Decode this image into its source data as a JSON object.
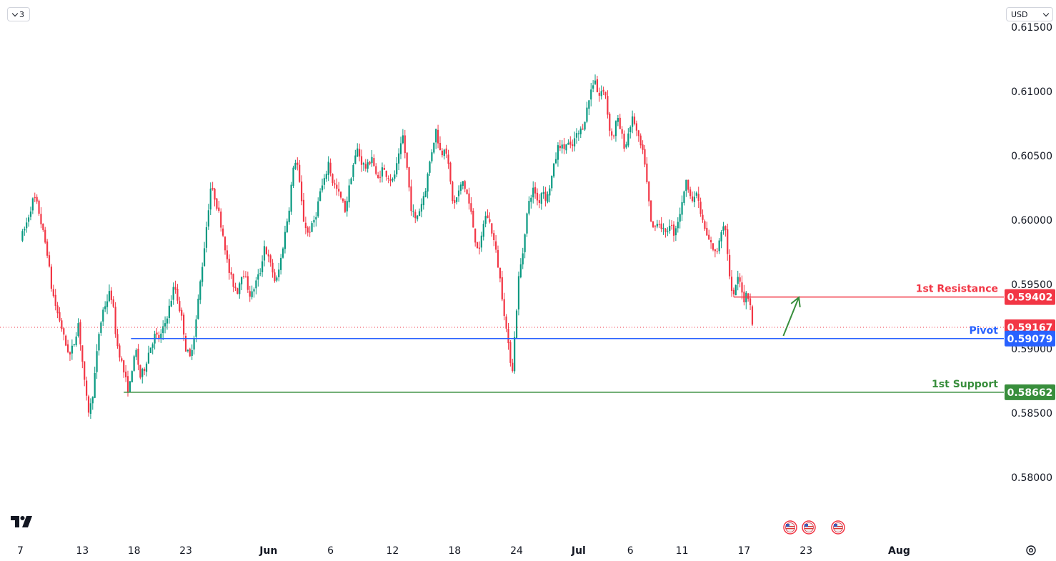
{
  "toolbar": {
    "interval_label": "3",
    "currency_label": "USD"
  },
  "colors": {
    "up": "#089981",
    "down": "#f23645",
    "resistance": "#f23645",
    "pivot": "#2962ff",
    "support": "#388e3c",
    "arrow": "#388e3c"
  },
  "chart_data": {
    "type": "candlestick",
    "title": "",
    "ylim": [
      0.5765,
      0.6155
    ],
    "y_ticks": [
      "0.58000",
      "0.58500",
      "0.59000",
      "0.59500",
      "0.60000",
      "0.60500",
      "0.61000",
      "0.61500"
    ],
    "x_ticks": [
      {
        "label": "7",
        "day": 0
      },
      {
        "label": "13",
        "day": 6
      },
      {
        "label": "18",
        "day": 11
      },
      {
        "label": "23",
        "day": 16
      },
      {
        "label": "Jun",
        "day": 24
      },
      {
        "label": "6",
        "day": 30
      },
      {
        "label": "12",
        "day": 36
      },
      {
        "label": "18",
        "day": 42
      },
      {
        "label": "24",
        "day": 48
      },
      {
        "label": "Jul",
        "day": 54
      },
      {
        "label": "6",
        "day": 59
      },
      {
        "label": "11",
        "day": 64
      },
      {
        "label": "17",
        "day": 70
      },
      {
        "label": "23",
        "day": 76
      },
      {
        "label": "Aug",
        "day": 85
      }
    ],
    "current_price": "0.59167",
    "levels": [
      {
        "name": "1st Resistance",
        "value": 0.59402,
        "label": "0.59402",
        "from_day": 69.0,
        "role": "resistance"
      },
      {
        "name": "Pivot",
        "value": 0.59079,
        "label": "0.59079",
        "from_day": 10.7,
        "role": "pivot"
      },
      {
        "name": "1st Support",
        "value": 0.58662,
        "label": "0.58662",
        "from_day": 10.0,
        "role": "support"
      }
    ],
    "projection_arrow": {
      "from": {
        "day": 73.8,
        "price": 0.591
      },
      "to": {
        "day": 75.3,
        "price": 0.594
      }
    },
    "price_path": [
      [
        0.0,
        0.5985
      ],
      [
        0.5,
        0.5995
      ],
      [
        1.3,
        0.6018
      ],
      [
        1.7,
        0.601
      ],
      [
        2.2,
        0.599
      ],
      [
        2.6,
        0.5975
      ],
      [
        3.0,
        0.5948
      ],
      [
        3.5,
        0.593
      ],
      [
        3.9,
        0.592
      ],
      [
        4.3,
        0.5905
      ],
      [
        4.8,
        0.5895
      ],
      [
        5.2,
        0.5905
      ],
      [
        5.6,
        0.592
      ],
      [
        6.0,
        0.589
      ],
      [
        6.3,
        0.5865
      ],
      [
        6.6,
        0.5852
      ],
      [
        6.9,
        0.5858
      ],
      [
        7.2,
        0.588
      ],
      [
        7.6,
        0.5912
      ],
      [
        8.0,
        0.593
      ],
      [
        8.4,
        0.5938
      ],
      [
        8.7,
        0.5945
      ],
      [
        9.0,
        0.593
      ],
      [
        9.3,
        0.5905
      ],
      [
        9.7,
        0.5893
      ],
      [
        10.0,
        0.5882
      ],
      [
        10.3,
        0.5872
      ],
      [
        10.5,
        0.5866
      ],
      [
        10.8,
        0.5885
      ],
      [
        11.2,
        0.5898
      ],
      [
        11.6,
        0.5878
      ],
      [
        12.0,
        0.5885
      ],
      [
        12.5,
        0.59
      ],
      [
        13.0,
        0.591
      ],
      [
        13.5,
        0.5908
      ],
      [
        14.0,
        0.592
      ],
      [
        14.5,
        0.5935
      ],
      [
        14.9,
        0.595
      ],
      [
        15.3,
        0.5935
      ],
      [
        15.7,
        0.592
      ],
      [
        16.0,
        0.59
      ],
      [
        16.4,
        0.5893
      ],
      [
        16.9,
        0.5915
      ],
      [
        17.3,
        0.5945
      ],
      [
        17.7,
        0.5972
      ],
      [
        18.0,
        0.5995
      ],
      [
        18.4,
        0.6025
      ],
      [
        18.8,
        0.6018
      ],
      [
        19.2,
        0.6005
      ],
      [
        19.7,
        0.5985
      ],
      [
        20.1,
        0.5962
      ],
      [
        20.6,
        0.595
      ],
      [
        21.0,
        0.5945
      ],
      [
        21.5,
        0.5962
      ],
      [
        21.9,
        0.595
      ],
      [
        22.3,
        0.594
      ],
      [
        22.7,
        0.595
      ],
      [
        23.2,
        0.596
      ],
      [
        23.6,
        0.598
      ],
      [
        24.0,
        0.597
      ],
      [
        24.4,
        0.596
      ],
      [
        24.7,
        0.595
      ],
      [
        25.1,
        0.5965
      ],
      [
        25.6,
        0.599
      ],
      [
        26.0,
        0.601
      ],
      [
        26.3,
        0.6035
      ],
      [
        26.7,
        0.605
      ],
      [
        27.1,
        0.602
      ],
      [
        27.4,
        0.6
      ],
      [
        27.8,
        0.599
      ],
      [
        28.2,
        0.5995
      ],
      [
        28.6,
        0.6005
      ],
      [
        29.0,
        0.6022
      ],
      [
        29.4,
        0.603
      ],
      [
        29.8,
        0.6045
      ],
      [
        30.2,
        0.603
      ],
      [
        30.7,
        0.6022
      ],
      [
        31.1,
        0.6015
      ],
      [
        31.4,
        0.6008
      ],
      [
        31.7,
        0.602
      ],
      [
        32.1,
        0.604
      ],
      [
        32.6,
        0.6055
      ],
      [
        33.0,
        0.6045
      ],
      [
        33.5,
        0.604
      ],
      [
        34.0,
        0.605
      ],
      [
        34.5,
        0.603
      ],
      [
        35.0,
        0.604
      ],
      [
        35.5,
        0.6035
      ],
      [
        36.0,
        0.603
      ],
      [
        36.5,
        0.6045
      ],
      [
        37.0,
        0.6065
      ],
      [
        37.4,
        0.604
      ],
      [
        37.8,
        0.601
      ],
      [
        38.2,
        0.6
      ],
      [
        38.7,
        0.601
      ],
      [
        39.2,
        0.6025
      ],
      [
        39.7,
        0.605
      ],
      [
        40.2,
        0.607
      ],
      [
        40.7,
        0.605
      ],
      [
        41.1,
        0.606
      ],
      [
        41.5,
        0.6035
      ],
      [
        41.9,
        0.601
      ],
      [
        42.3,
        0.602
      ],
      [
        42.8,
        0.603
      ],
      [
        43.2,
        0.602
      ],
      [
        43.6,
        0.6005
      ],
      [
        44.0,
        0.5985
      ],
      [
        44.4,
        0.5975
      ],
      [
        44.8,
        0.5998
      ],
      [
        45.1,
        0.6005
      ],
      [
        45.5,
        0.5995
      ],
      [
        45.9,
        0.598
      ],
      [
        46.3,
        0.596
      ],
      [
        46.7,
        0.5935
      ],
      [
        47.0,
        0.5915
      ],
      [
        47.3,
        0.5895
      ],
      [
        47.6,
        0.5885
      ],
      [
        47.9,
        0.592
      ],
      [
        48.2,
        0.5955
      ],
      [
        48.6,
        0.5975
      ],
      [
        48.9,
        0.6
      ],
      [
        49.3,
        0.6018
      ],
      [
        49.7,
        0.6025
      ],
      [
        50.1,
        0.6012
      ],
      [
        50.5,
        0.6025
      ],
      [
        50.9,
        0.6015
      ],
      [
        51.3,
        0.603
      ],
      [
        51.7,
        0.6045
      ],
      [
        52.1,
        0.606
      ],
      [
        52.5,
        0.6055
      ],
      [
        52.9,
        0.606
      ],
      [
        53.3,
        0.6055
      ],
      [
        53.7,
        0.6065
      ],
      [
        54.1,
        0.6068
      ],
      [
        54.5,
        0.6075
      ],
      [
        54.9,
        0.609
      ],
      [
        55.3,
        0.6105
      ],
      [
        55.6,
        0.611
      ],
      [
        55.9,
        0.6095
      ],
      [
        56.2,
        0.61
      ],
      [
        56.6,
        0.6098
      ],
      [
        56.9,
        0.6075
      ],
      [
        57.3,
        0.6062
      ],
      [
        57.7,
        0.608
      ],
      [
        58.1,
        0.6068
      ],
      [
        58.5,
        0.6055
      ],
      [
        58.9,
        0.6072
      ],
      [
        59.3,
        0.608
      ],
      [
        59.7,
        0.6065
      ],
      [
        60.1,
        0.6055
      ],
      [
        60.4,
        0.6045
      ],
      [
        60.7,
        0.602
      ],
      [
        61.0,
        0.5998
      ],
      [
        61.3,
        0.5992
      ],
      [
        61.6,
        0.6
      ],
      [
        62.0,
        0.5995
      ],
      [
        62.4,
        0.5988
      ],
      [
        62.8,
        0.5998
      ],
      [
        63.2,
        0.599
      ],
      [
        63.6,
        0.6
      ],
      [
        64.0,
        0.6012
      ],
      [
        64.3,
        0.603
      ],
      [
        64.7,
        0.6025
      ],
      [
        65.1,
        0.6012
      ],
      [
        65.4,
        0.6022
      ],
      [
        65.8,
        0.6005
      ],
      [
        66.1,
        0.5995
      ],
      [
        66.5,
        0.5985
      ],
      [
        66.9,
        0.598
      ],
      [
        67.3,
        0.5972
      ],
      [
        67.7,
        0.599
      ],
      [
        68.1,
        0.6
      ],
      [
        68.4,
        0.5975
      ],
      [
        68.7,
        0.5945
      ],
      [
        69.0,
        0.594
      ],
      [
        69.3,
        0.5955
      ],
      [
        69.7,
        0.595
      ],
      [
        70.0,
        0.5938
      ],
      [
        70.3,
        0.5945
      ],
      [
        70.6,
        0.5935
      ],
      [
        70.8,
        0.5917
      ]
    ]
  }
}
